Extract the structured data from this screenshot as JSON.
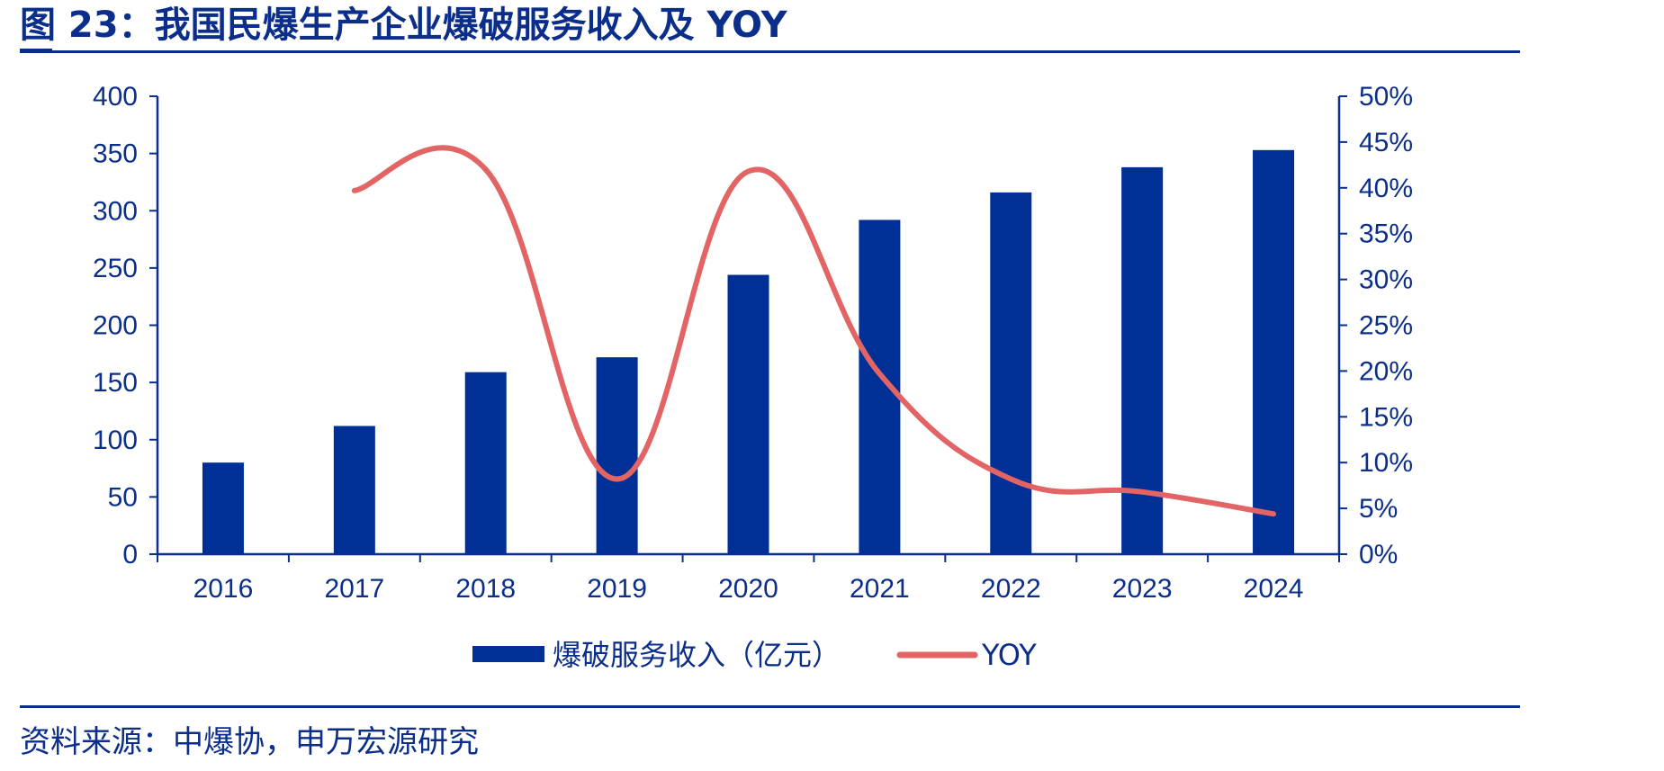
{
  "title": "图 23：我国民爆生产企业爆破服务收入及 YOY",
  "source": "资料来源：中爆协，申万宏源研究",
  "colors": {
    "bar": "#002f96",
    "line": "#e26464",
    "axis": "#0b2e8a"
  },
  "chart_data": {
    "type": "bar",
    "categories": [
      "2016",
      "2017",
      "2018",
      "2019",
      "2020",
      "2021",
      "2022",
      "2023",
      "2024"
    ],
    "series": [
      {
        "name": "爆破服务收入（亿元）",
        "type": "bar",
        "axis": "left",
        "values": [
          80,
          112,
          159,
          172,
          244,
          292,
          316,
          338,
          353
        ]
      },
      {
        "name": "YOY",
        "type": "line",
        "axis": "right",
        "values": [
          null,
          0.397,
          0.42,
          0.082,
          0.418,
          0.197,
          0.082,
          0.068,
          0.044
        ]
      }
    ],
    "ylim_left": [
      0,
      400
    ],
    "yticks_left": [
      "0",
      "50",
      "100",
      "150",
      "200",
      "250",
      "300",
      "350",
      "400"
    ],
    "ylim_right": [
      0,
      0.5
    ],
    "yticks_right": [
      "0%",
      "5%",
      "10%",
      "15%",
      "20%",
      "25%",
      "30%",
      "35%",
      "40%",
      "45%",
      "50%"
    ],
    "legend_position": "bottom",
    "grid": false
  }
}
